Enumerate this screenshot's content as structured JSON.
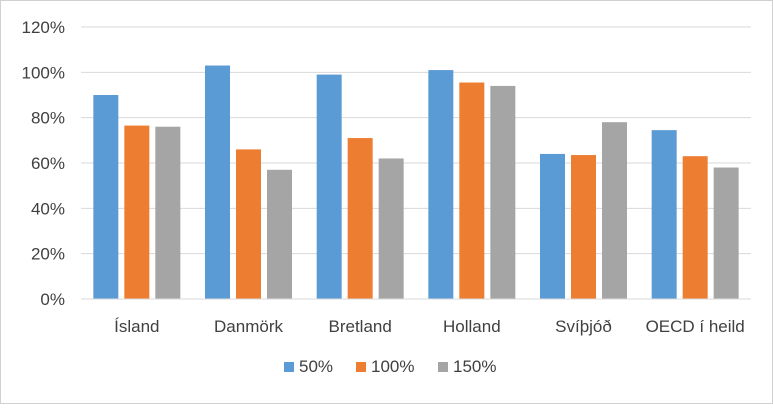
{
  "chart_data": {
    "type": "bar",
    "categories": [
      "Ísland",
      "Danmörk",
      "Bretland",
      "Holland",
      "Svíþjóð",
      "OECD í heild"
    ],
    "series": [
      {
        "name": "50%",
        "color": "#5b9bd5",
        "values": [
          90,
          103,
          99,
          101,
          64,
          74.5
        ]
      },
      {
        "name": "100%",
        "color": "#ed7d31",
        "values": [
          76.5,
          66,
          71,
          95.5,
          63.5,
          63
        ]
      },
      {
        "name": "150%",
        "color": "#a5a5a5",
        "values": [
          76,
          57,
          62,
          94,
          78,
          58
        ]
      }
    ],
    "y_ticks": [
      "0%",
      "20%",
      "40%",
      "60%",
      "80%",
      "100%",
      "120%"
    ],
    "ylim": [
      0,
      120
    ],
    "grid": true,
    "legend": "bottom"
  }
}
